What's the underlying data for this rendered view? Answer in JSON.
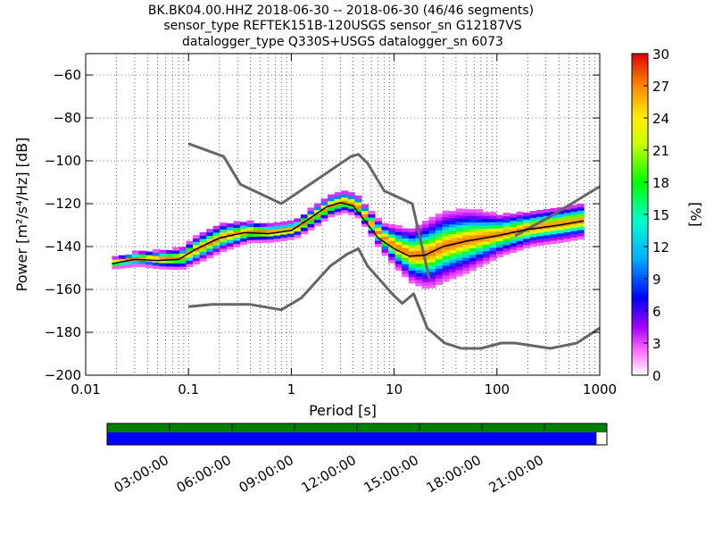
{
  "chart_data": {
    "type": "heatmap",
    "title_lines": [
      "BK.BK04.00.HHZ   2018-06-30 -- 2018-06-30  (46/46 segments)",
      "sensor_type REFTEK151B-120USGS sensor_sn G12187VS",
      "datalogger_type Q330S+USGS datalogger_sn 6073"
    ],
    "xlabel": "Period [s]",
    "ylabel": "Power [m²/s⁴/Hz] [dB]",
    "ylabel_main": "Power",
    "ylabel_units": "[m²/s⁴/Hz] [dB]",
    "x_scale": "log",
    "xlim": [
      0.01,
      1000
    ],
    "ylim": [
      -200,
      -50
    ],
    "x_ticks": [
      {
        "value": 0.01,
        "label": "0.01"
      },
      {
        "value": 0.1,
        "label": "0.1"
      },
      {
        "value": 1,
        "label": "1"
      },
      {
        "value": 10,
        "label": "10"
      },
      {
        "value": 100,
        "label": "100"
      },
      {
        "value": 1000,
        "label": "1000"
      }
    ],
    "y_ticks": [
      {
        "value": -60,
        "label": "−60"
      },
      {
        "value": -80,
        "label": "−80"
      },
      {
        "value": -100,
        "label": "−100"
      },
      {
        "value": -120,
        "label": "−120"
      },
      {
        "value": -140,
        "label": "−140"
      },
      {
        "value": -160,
        "label": "−160"
      },
      {
        "value": -180,
        "label": "−180"
      },
      {
        "value": -200,
        "label": "−200"
      }
    ],
    "grid": true,
    "colorbar": {
      "label": "[%]",
      "min": 0,
      "max": 30,
      "ticks": [
        {
          "value": 0,
          "label": "0"
        },
        {
          "value": 3,
          "label": "3"
        },
        {
          "value": 6,
          "label": "6"
        },
        {
          "value": 9,
          "label": "9"
        },
        {
          "value": 12,
          "label": "12"
        },
        {
          "value": 15,
          "label": "15"
        },
        {
          "value": 18,
          "label": "18"
        },
        {
          "value": 21,
          "label": "21"
        },
        {
          "value": 24,
          "label": "24"
        },
        {
          "value": 27,
          "label": "27"
        },
        {
          "value": 30,
          "label": "30"
        }
      ]
    },
    "noise_models": [
      {
        "name": "NHNM",
        "color": "#666666",
        "points": [
          [
            0.1,
            -92
          ],
          [
            0.22,
            -98
          ],
          [
            0.32,
            -111
          ],
          [
            0.8,
            -120
          ],
          [
            3.8,
            -98
          ],
          [
            4.5,
            -97
          ],
          [
            5.5,
            -101
          ],
          [
            8,
            -114
          ],
          [
            15,
            -120
          ],
          [
            22,
            -155
          ]
        ]
      },
      {
        "name": "NLNM",
        "color": "#666666",
        "points": [
          [
            0.1,
            -168
          ],
          [
            0.17,
            -167
          ],
          [
            0.4,
            -167
          ],
          [
            0.8,
            -169.5
          ],
          [
            1.25,
            -164
          ],
          [
            2.4,
            -149
          ],
          [
            3.5,
            -143.5
          ],
          [
            4.5,
            -141
          ],
          [
            5.5,
            -149
          ],
          [
            10,
            -163
          ],
          [
            12,
            -166.5
          ],
          [
            15.5,
            -162
          ],
          [
            21,
            -178
          ],
          [
            31,
            -185
          ],
          [
            45,
            -187.5
          ],
          [
            70,
            -187.5
          ],
          [
            110,
            -185
          ],
          [
            150,
            -185
          ],
          [
            330,
            -187.5
          ],
          [
            600,
            -185
          ],
          [
            1000,
            -178
          ]
        ]
      },
      {
        "name": "NHNM long period",
        "color": "#666666",
        "points": [
          [
            150,
            -135
          ],
          [
            330,
            -126
          ],
          [
            1000,
            -112
          ]
        ]
      }
    ],
    "mode_curve": {
      "color": "#000000",
      "points": [
        [
          0.018,
          -148
        ],
        [
          0.03,
          -146
        ],
        [
          0.05,
          -146.5
        ],
        [
          0.08,
          -146
        ],
        [
          0.12,
          -141
        ],
        [
          0.2,
          -136
        ],
        [
          0.35,
          -133.5
        ],
        [
          0.6,
          -134
        ],
        [
          1,
          -132.5
        ],
        [
          1.5,
          -127
        ],
        [
          2.2,
          -121.5
        ],
        [
          3,
          -119.5
        ],
        [
          4,
          -121
        ],
        [
          5,
          -127
        ],
        [
          7,
          -136
        ],
        [
          10,
          -141
        ],
        [
          14,
          -144.5
        ],
        [
          20,
          -144
        ],
        [
          30,
          -140
        ],
        [
          50,
          -137.5
        ],
        [
          100,
          -135
        ],
        [
          200,
          -132
        ],
        [
          400,
          -130
        ],
        [
          700,
          -128
        ]
      ]
    },
    "density_band": [
      {
        "period": 0.018,
        "mode_db": -148,
        "spread_db": 1.5
      },
      {
        "period": 0.03,
        "mode_db": -146,
        "spread_db": 2
      },
      {
        "period": 0.05,
        "mode_db": -146.5,
        "spread_db": 2.5
      },
      {
        "period": 0.08,
        "mode_db": -146,
        "spread_db": 3
      },
      {
        "period": 0.12,
        "mode_db": -141,
        "spread_db": 4
      },
      {
        "period": 0.2,
        "mode_db": -136,
        "spread_db": 4
      },
      {
        "period": 0.35,
        "mode_db": -133.5,
        "spread_db": 3
      },
      {
        "period": 0.6,
        "mode_db": -134,
        "spread_db": 2.5
      },
      {
        "period": 1,
        "mode_db": -132.5,
        "spread_db": 2.5
      },
      {
        "period": 1.5,
        "mode_db": -127,
        "spread_db": 3
      },
      {
        "period": 2.2,
        "mode_db": -121.5,
        "spread_db": 3
      },
      {
        "period": 3,
        "mode_db": -119.5,
        "spread_db": 3
      },
      {
        "period": 4,
        "mode_db": -121,
        "spread_db": 3
      },
      {
        "period": 5,
        "mode_db": -127,
        "spread_db": 3
      },
      {
        "period": 7,
        "mode_db": -136,
        "spread_db": 4
      },
      {
        "period": 10,
        "mode_db": -141,
        "spread_db": 6
      },
      {
        "period": 14,
        "mode_db": -144.5,
        "spread_db": 8
      },
      {
        "period": 20,
        "mode_db": -144,
        "spread_db": 10
      },
      {
        "period": 30,
        "mode_db": -140,
        "spread_db": 10
      },
      {
        "period": 50,
        "mode_db": -137.5,
        "spread_db": 9
      },
      {
        "period": 100,
        "mode_db": -135,
        "spread_db": 6
      },
      {
        "period": 200,
        "mode_db": -132,
        "spread_db": 5
      },
      {
        "period": 400,
        "mode_db": -130,
        "spread_db": 5
      },
      {
        "period": 700,
        "mode_db": -128,
        "spread_db": 5
      }
    ],
    "timeline": {
      "labels": [
        "03:00:00",
        "06:00:00",
        "09:00:00",
        "12:00:00",
        "15:00:00",
        "18:00:00",
        "21:00:00"
      ],
      "tick_hours": [
        3,
        6,
        9,
        12,
        15,
        18,
        21
      ],
      "span_hours": 24,
      "upper_bar": {
        "color": "#008000",
        "start_hour": 0,
        "end_hour": 24
      },
      "lower_bar": {
        "color": "#0000ff",
        "start_hour": 0,
        "end_hour": 23.5
      }
    }
  }
}
